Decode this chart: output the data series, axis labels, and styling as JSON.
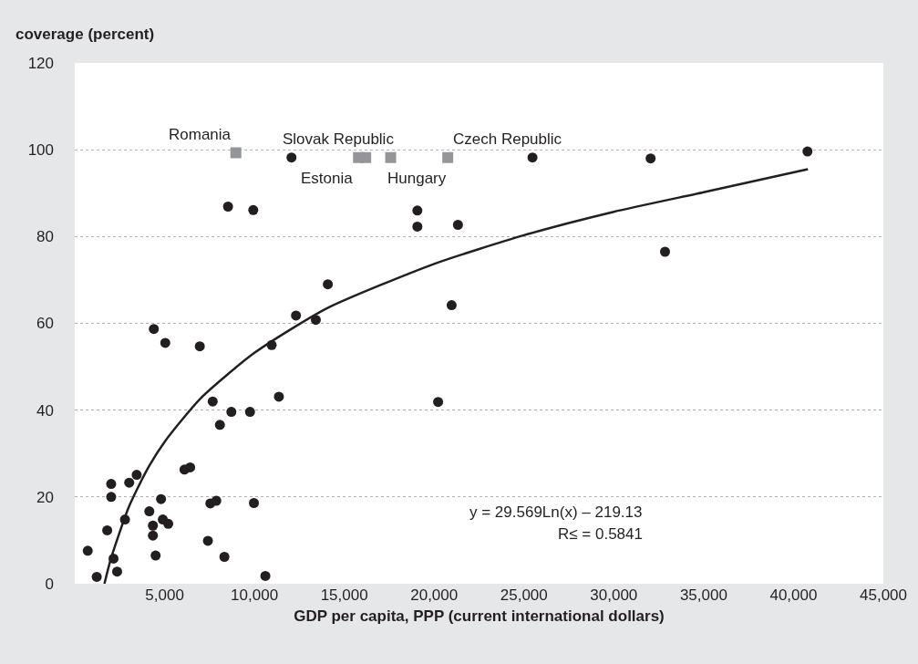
{
  "chart_data": {
    "type": "scatter",
    "ylabel": "coverage (percent)",
    "xlabel": "GDP per capita, PPP (current international dollars)",
    "xlim": [
      0,
      45000
    ],
    "xticks": [
      {
        "value": 5000,
        "label": "5,000"
      },
      {
        "value": 10000,
        "label": "10,000"
      },
      {
        "value": 15000,
        "label": "15,000"
      },
      {
        "value": 20000,
        "label": "20,000"
      },
      {
        "value": 25000,
        "label": "25,000"
      },
      {
        "value": 30000,
        "label": "30,000"
      },
      {
        "value": 35000,
        "label": "35,000"
      },
      {
        "value": 40000,
        "label": "40,000"
      },
      {
        "value": 45000,
        "label": "45,000"
      }
    ],
    "ylim": [
      0,
      120
    ],
    "yticks": [
      0,
      20,
      40,
      60,
      80,
      100,
      120
    ],
    "grid": "y",
    "series": [
      {
        "marker": "circle",
        "color": "#231f20",
        "x": [
          723,
          1224,
          1806,
          2027,
          2027,
          2158,
          2358,
          2795,
          3031,
          3447,
          4150,
          4350,
          4350,
          4501,
          4802,
          4902,
          5203,
          4400,
          5038,
          6106,
          6422,
          6959,
          7410,
          7546,
          7878,
          7677,
          8078,
          8329,
          8715,
          9754,
          9970,
          10607,
          10958,
          11360,
          12313,
          13417,
          8530,
          9935,
          12062,
          14084,
          19067,
          19067,
          21325,
          20973,
          25474,
          32047,
          40778,
          32850,
          20221
        ],
        "values": [
          7.6,
          1.6,
          12.3,
          23.0,
          20.0,
          5.8,
          2.8,
          14.8,
          23.3,
          25.1,
          16.7,
          13.4,
          11.1,
          6.5,
          19.5,
          14.8,
          13.8,
          58.7,
          55.5,
          26.3,
          26.8,
          54.7,
          9.9,
          18.5,
          19.1,
          42.0,
          36.6,
          6.2,
          39.6,
          39.6,
          18.6,
          1.8,
          55.0,
          43.1,
          61.8,
          60.8,
          86.9,
          86.1,
          98.2,
          69.0,
          86.0,
          82.3,
          82.7,
          64.2,
          98.2,
          98.0,
          99.6,
          76.5,
          41.9
        ]
      },
      {
        "marker": "square",
        "color": "#939598",
        "x": [
          8966,
          15790,
          16192,
          17581,
          20758
        ],
        "values": [
          99.3,
          98.2,
          98.2,
          98.2,
          98.2
        ]
      },
      {
        "type": "line",
        "color": "#231f20",
        "line_style": "solid",
        "x": [
          1652,
          2000,
          3000,
          4000,
          5000,
          7000,
          10000,
          14000,
          20000,
          25000,
          30000,
          35000,
          40800
        ],
        "values": [
          0,
          5.6,
          17.6,
          26.1,
          32.7,
          42.7,
          53.2,
          63.4,
          73.7,
          80.3,
          85.7,
          90.2,
          95.5
        ]
      }
    ],
    "annotations": [
      {
        "text": "Romania",
        "x": 8966,
        "y": 99.3
      },
      {
        "text": "Slovak Republic",
        "x": 15790,
        "y": 98.2
      },
      {
        "text": "Estonia",
        "x": 16192,
        "y": 98.2
      },
      {
        "text": "Hungary",
        "x": 17581,
        "y": 98.2
      },
      {
        "text": "Czech Republic",
        "x": 20758,
        "y": 98.2
      },
      "y = 29.569Ln(x) – 219.13",
      "R≤ = 0.5841"
    ]
  }
}
